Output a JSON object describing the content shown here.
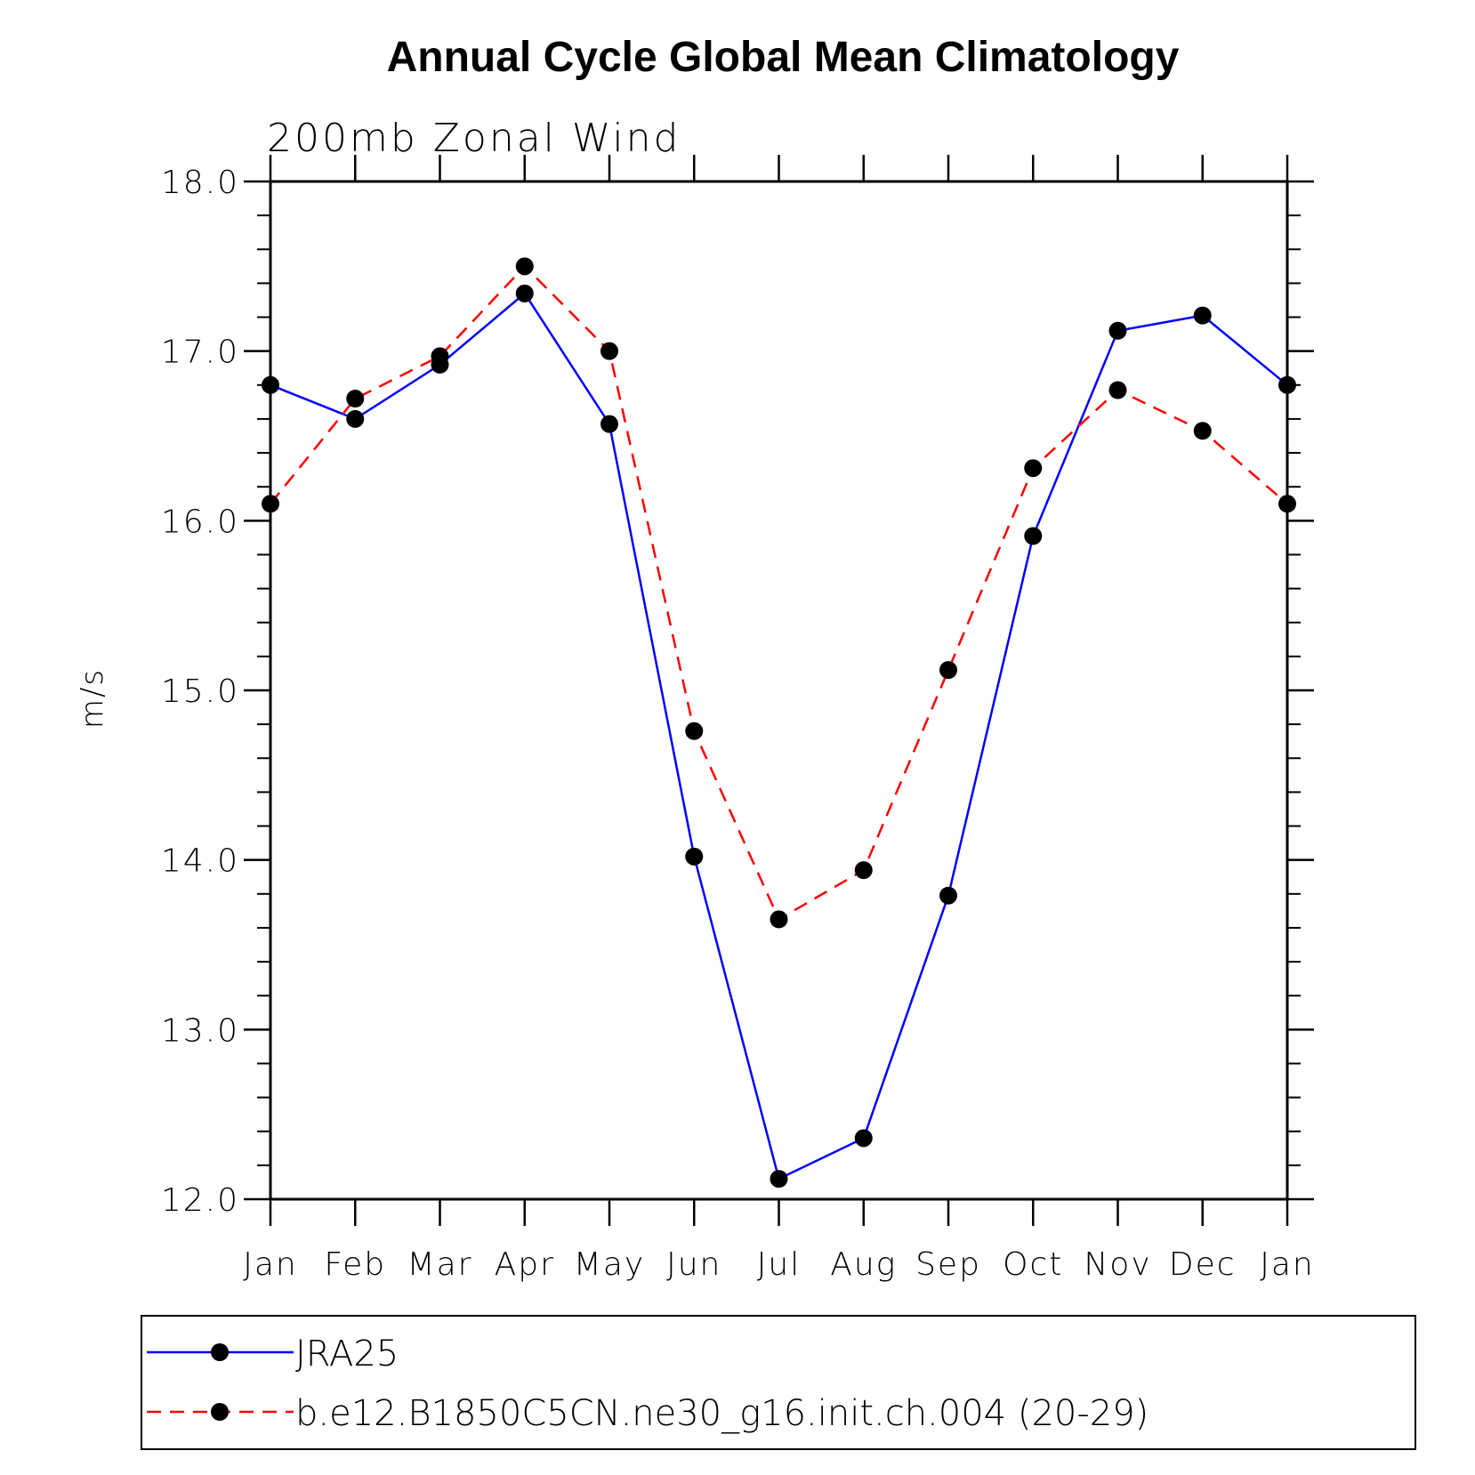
{
  "chart_data": {
    "type": "line",
    "title": "Annual Cycle Global Mean Climatology",
    "subtitle": "200mb Zonal Wind",
    "ylabel": "m/s",
    "xlabel": "",
    "categories": [
      "Jan",
      "Feb",
      "Mar",
      "Apr",
      "May",
      "Jun",
      "Jul",
      "Aug",
      "Sep",
      "Oct",
      "Nov",
      "Dec",
      "Jan"
    ],
    "ylim": [
      12.0,
      18.0
    ],
    "yticks": [
      "12.0",
      "13.0",
      "14.0",
      "15.0",
      "16.0",
      "17.0",
      "18.0"
    ],
    "grid": false,
    "legend_position": "bottom",
    "series": [
      {
        "name": "JRA25",
        "color": "#0000ff",
        "line_style": "solid",
        "marker": "filled-circle",
        "values": [
          16.8,
          16.6,
          16.92,
          17.34,
          16.57,
          14.02,
          12.12,
          12.36,
          13.79,
          15.91,
          17.12,
          17.21,
          16.8
        ]
      },
      {
        "name": "b.e12.B1850C5CN.ne30_g16.init.ch.004 (20-29)",
        "color": "#ff0000",
        "line_style": "dashed",
        "marker": "filled-circle",
        "values": [
          16.1,
          16.72,
          16.97,
          17.5,
          17.0,
          14.76,
          13.65,
          13.94,
          15.12,
          16.31,
          16.77,
          16.53,
          16.1
        ]
      }
    ]
  }
}
